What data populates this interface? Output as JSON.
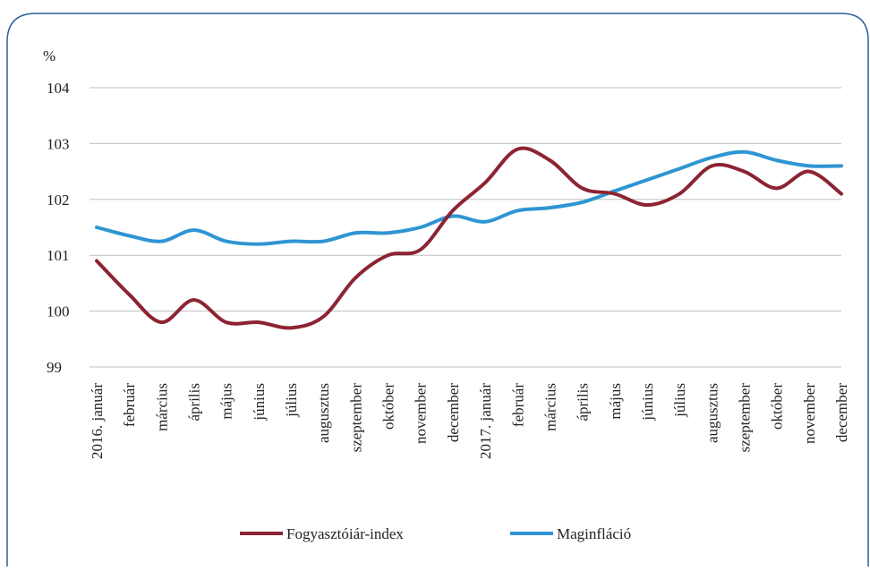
{
  "chart_data": {
    "type": "line",
    "y_label": "%",
    "categories": [
      "2016. január",
      "február",
      "március",
      "április",
      "május",
      "június",
      "július",
      "augusztus",
      "szeptember",
      "október",
      "november",
      "december",
      "2017. január",
      "február",
      "március",
      "április",
      "május",
      "június",
      "július",
      "augusztus",
      "szeptember",
      "október",
      "november",
      "december"
    ],
    "series": [
      {
        "name": "Fogyasztóiár-index",
        "color": "#8c2433",
        "values": [
          100.9,
          100.3,
          99.8,
          100.2,
          99.8,
          99.8,
          99.7,
          99.9,
          100.6,
          101.0,
          101.1,
          101.8,
          102.3,
          102.9,
          102.7,
          102.2,
          102.1,
          101.9,
          102.1,
          102.6,
          102.5,
          102.2,
          102.5,
          102.1
        ]
      },
      {
        "name": "Maginfláció",
        "color": "#2e95d3",
        "values": [
          101.5,
          101.35,
          101.25,
          101.45,
          101.25,
          101.2,
          101.25,
          101.25,
          101.4,
          101.4,
          101.5,
          101.7,
          101.6,
          101.8,
          101.85,
          101.95,
          102.15,
          102.35,
          102.55,
          102.75,
          102.85,
          102.7,
          102.6,
          102.6
        ]
      }
    ],
    "ylim": [
      99,
      104
    ],
    "yticks": [
      99,
      100,
      101,
      102,
      103,
      104
    ],
    "grid": true,
    "legend": "bottom"
  }
}
